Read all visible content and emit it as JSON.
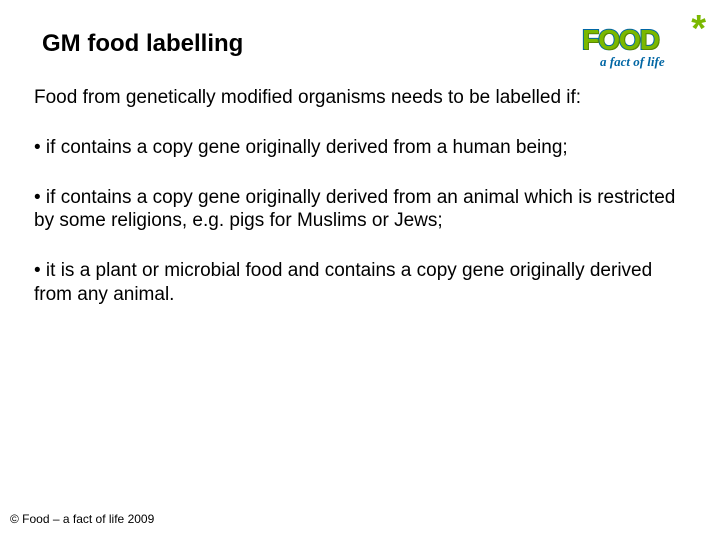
{
  "slide": {
    "title": "GM food labelling",
    "intro": "Food from genetically modified organisms needs to be labelled if:",
    "bullets": [
      "• if contains a copy gene originally derived from a human being;",
      "• if contains a copy gene originally derived from an animal which is restricted by some religions, e.g. pigs for Muslims or Jews;",
      "• it is a plant or microbial food and contains a copy gene originally derived from any animal."
    ],
    "copyright": "© Food – a fact of life 2009"
  },
  "logo": {
    "main": "FOOD",
    "sub": "a fact of life",
    "asterisk": "*",
    "green": "#7ab800",
    "blue": "#0066a4"
  },
  "styling": {
    "background": "#ffffff",
    "title_fontsize": 24,
    "title_weight": "bold",
    "body_fontsize": 19,
    "copyright_fontsize": 12,
    "text_color": "#000000",
    "font_family": "Arial"
  }
}
